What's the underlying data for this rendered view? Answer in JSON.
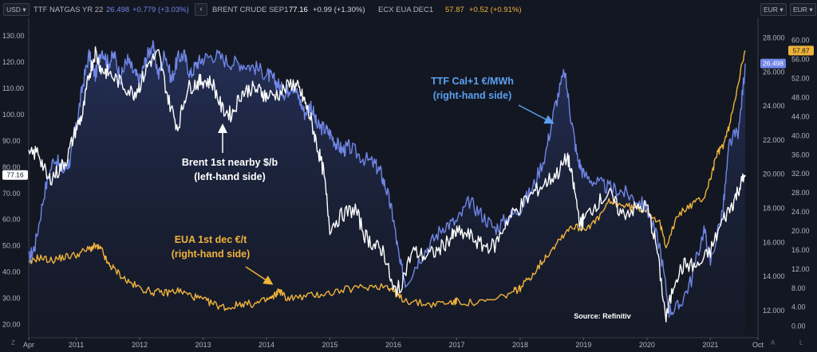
{
  "header": {
    "left_unit": "USD",
    "series": [
      {
        "name": "TTF NATGAS YR 22",
        "value": "26.498",
        "change": "+0.779 (+3.03%)",
        "color": "#6f86e6"
      },
      {
        "name": "BRENT CRUDE SEP1",
        "value": "77.16",
        "change": "+0.99 (+1.30%)",
        "color": "#ffffff"
      },
      {
        "name": "ECX EUA DEC1",
        "value": "57.87",
        "change": "+0.52 (+0.91%)",
        "color": "#f0b33a"
      }
    ],
    "nav_icon": "chevron-left-icon",
    "right_unit_1": "EUR",
    "right_unit_2": "EUR"
  },
  "footer": {
    "left_btn": "Z",
    "right_btn_1": "A",
    "right_btn_2": "L"
  },
  "chart_data": {
    "type": "line",
    "x_ticks": [
      "Apr",
      "2011",
      "2012",
      "2013",
      "2014",
      "2015",
      "2016",
      "2017",
      "2018",
      "2019",
      "2020",
      "2021",
      "Oct"
    ],
    "x_tick_years": [
      2010.25,
      2011,
      2012,
      2013,
      2014,
      2015,
      2016,
      2017,
      2018,
      2019,
      2020,
      2021,
      2021.75
    ],
    "xlim": [
      2010.25,
      2021.75
    ],
    "left_axis": {
      "label": "USD",
      "ylim": [
        15,
        137
      ],
      "ticks": [
        20,
        30,
        40,
        50,
        60,
        70,
        80,
        90,
        100,
        110,
        120,
        130
      ],
      "tick_labels": [
        "20.00",
        "30.00",
        "40.00",
        "50.00",
        "60.00",
        "70.00",
        "80.00",
        "90.00",
        "100.00",
        "110.00",
        "120.00",
        "130.00"
      ]
    },
    "ttf_axis": {
      "label": "EUR",
      "ylim": [
        10.4,
        29.2
      ],
      "ticks": [
        12,
        14,
        16,
        18,
        20,
        22,
        24,
        26,
        28
      ],
      "tick_labels": [
        "12.000",
        "14.000",
        "16.000",
        "18.000",
        "20.000",
        "22.000",
        "24.000",
        "26.000",
        "28.000"
      ]
    },
    "eua_axis": {
      "label": "EUR",
      "ylim": [
        -2.4,
        64.8
      ],
      "ticks": [
        0,
        4,
        8,
        12,
        16,
        20,
        24,
        28,
        32,
        36,
        40,
        44,
        48,
        52,
        56,
        60
      ],
      "tick_labels": [
        "0.00",
        "4.00",
        "8.00",
        "12.00",
        "16.00",
        "20.00",
        "24.00",
        "28.00",
        "32.00",
        "36.00",
        "40.00",
        "44.00",
        "48.00",
        "52.00",
        "56.00",
        "60.00"
      ]
    },
    "series": [
      {
        "name": "TTF Cal+1",
        "unit": "€/MWh",
        "axis": "ttf",
        "color": "#6f86e6",
        "x": [
          2010.25,
          2010.35,
          2010.5,
          2010.65,
          2010.8,
          2010.9,
          2011.0,
          2011.1,
          2011.2,
          2011.3,
          2011.4,
          2011.5,
          2011.6,
          2011.7,
          2011.8,
          2011.9,
          2012.0,
          2012.1,
          2012.2,
          2012.3,
          2012.4,
          2012.5,
          2012.6,
          2012.7,
          2012.8,
          2012.9,
          2013.0,
          2013.2,
          2013.4,
          2013.6,
          2013.8,
          2014.0,
          2014.1,
          2014.2,
          2014.3,
          2014.4,
          2014.5,
          2014.6,
          2014.7,
          2014.8,
          2014.9,
          2015.0,
          2015.1,
          2015.2,
          2015.3,
          2015.5,
          2015.7,
          2015.8,
          2015.9,
          2016.0,
          2016.1,
          2016.2,
          2016.4,
          2016.6,
          2016.8,
          2017.0,
          2017.2,
          2017.4,
          2017.6,
          2017.8,
          2018.0,
          2018.2,
          2018.4,
          2018.55,
          2018.7,
          2018.8,
          2018.9,
          2019.0,
          2019.2,
          2019.4,
          2019.6,
          2019.8,
          2020.0,
          2020.2,
          2020.35,
          2020.5,
          2020.7,
          2020.9,
          2021.0,
          2021.2,
          2021.3,
          2021.45,
          2021.55
        ],
        "y": [
          15.0,
          15.8,
          19.0,
          21.0,
          20.2,
          20.8,
          22.8,
          25.2,
          27.0,
          25.8,
          27.4,
          26.5,
          27.0,
          25.6,
          26.8,
          26.0,
          25.5,
          26.8,
          27.6,
          25.8,
          27.2,
          25.5,
          26.8,
          27.0,
          25.8,
          26.5,
          26.8,
          27.0,
          26.6,
          26.5,
          26.3,
          25.9,
          25.6,
          25.2,
          24.7,
          25.3,
          24.6,
          23.6,
          24.1,
          22.8,
          22.7,
          22.4,
          21.8,
          21.4,
          21.6,
          21.0,
          20.6,
          20.1,
          19.0,
          17.4,
          14.8,
          13.6,
          15.0,
          16.0,
          17.0,
          17.2,
          18.4,
          17.6,
          16.8,
          17.4,
          18.0,
          19.2,
          21.2,
          24.0,
          26.0,
          23.4,
          21.0,
          20.0,
          19.5,
          19.2,
          19.0,
          18.6,
          18.0,
          15.8,
          12.0,
          12.2,
          13.8,
          16.8,
          14.8,
          18.0,
          21.8,
          22.6,
          26.5
        ]
      },
      {
        "name": "Brent 1st nearby",
        "unit": "$/b",
        "axis": "left",
        "color": "#ffffff",
        "x": [
          2010.25,
          2010.4,
          2010.55,
          2010.7,
          2010.85,
          2011.0,
          2011.1,
          2011.2,
          2011.3,
          2011.4,
          2011.5,
          2011.7,
          2011.9,
          2012.0,
          2012.15,
          2012.3,
          2012.45,
          2012.6,
          2012.75,
          2012.9,
          2013.0,
          2013.15,
          2013.3,
          2013.45,
          2013.6,
          2013.75,
          2013.9,
          2014.0,
          2014.2,
          2014.4,
          2014.5,
          2014.6,
          2014.7,
          2014.8,
          2014.9,
          2015.0,
          2015.2,
          2015.4,
          2015.55,
          2015.7,
          2015.85,
          2016.0,
          2016.1,
          2016.3,
          2016.5,
          2016.7,
          2016.9,
          2017.0,
          2017.2,
          2017.4,
          2017.6,
          2017.8,
          2018.0,
          2018.2,
          2018.4,
          2018.6,
          2018.75,
          2018.85,
          2018.95,
          2019.0,
          2019.2,
          2019.4,
          2019.6,
          2019.8,
          2020.0,
          2020.15,
          2020.3,
          2020.45,
          2020.6,
          2020.8,
          2021.0,
          2021.2,
          2021.35,
          2021.45,
          2021.55
        ],
        "y": [
          84,
          86,
          75,
          78,
          83,
          95,
          100,
          115,
          124,
          117,
          116,
          112,
          108,
          111,
          120,
          123,
          106,
          95,
          110,
          112,
          113,
          112,
          102,
          100,
          108,
          110,
          109,
          107,
          108,
          112,
          110,
          105,
          98,
          88,
          78,
          57,
          62,
          64,
          54,
          50,
          48,
          33,
          34,
          48,
          46,
          48,
          53,
          55,
          54,
          50,
          50,
          60,
          65,
          70,
          74,
          78,
          84,
          72,
          58,
          60,
          66,
          70,
          62,
          64,
          65,
          50,
          22,
          38,
          43,
          42,
          48,
          60,
          66,
          72,
          77
        ]
      },
      {
        "name": "EUA 1st dec",
        "unit": "€/t",
        "axis": "eua",
        "color": "#f0b33a",
        "x": [
          2010.25,
          2010.4,
          2010.6,
          2010.8,
          2011.0,
          2011.2,
          2011.3,
          2011.4,
          2011.5,
          2011.6,
          2011.8,
          2012.0,
          2012.2,
          2012.4,
          2012.6,
          2012.8,
          2013.0,
          2013.2,
          2013.4,
          2013.6,
          2013.8,
          2014.0,
          2014.1,
          2014.2,
          2014.3,
          2014.5,
          2014.8,
          2015.0,
          2015.3,
          2015.6,
          2015.9,
          2016.0,
          2016.1,
          2016.3,
          2016.6,
          2016.9,
          2017.0,
          2017.3,
          2017.6,
          2017.9,
          2018.0,
          2018.2,
          2018.4,
          2018.6,
          2018.8,
          2019.0,
          2019.2,
          2019.4,
          2019.6,
          2019.8,
          2020.0,
          2020.2,
          2020.3,
          2020.5,
          2020.7,
          2020.9,
          2021.0,
          2021.1,
          2021.2,
          2021.3,
          2021.45,
          2021.55
        ],
        "y": [
          13.0,
          14.5,
          13.8,
          14.5,
          15.0,
          16.2,
          16.8,
          16.0,
          13.0,
          12.0,
          9.5,
          8.0,
          7.2,
          7.0,
          7.5,
          6.5,
          5.5,
          4.5,
          3.8,
          4.8,
          4.6,
          5.5,
          6.0,
          7.6,
          6.0,
          6.0,
          6.6,
          7.0,
          7.8,
          8.3,
          8.5,
          7.5,
          6.0,
          5.0,
          4.6,
          5.0,
          5.2,
          4.8,
          5.5,
          7.3,
          8.0,
          11.0,
          14.5,
          18.0,
          21.0,
          20.5,
          22.0,
          26.0,
          25.5,
          24.8,
          24.5,
          21.5,
          17.0,
          23.5,
          25.5,
          27.0,
          31.0,
          36.0,
          38.0,
          42.0,
          52.0,
          57.87
        ]
      }
    ],
    "price_tags": [
      {
        "series": "Brent 1st nearby",
        "label": "77.16",
        "side": "left"
      },
      {
        "series": "TTF Cal+1",
        "label": "26.498",
        "side": "right"
      },
      {
        "series": "EUA 1st dec",
        "label": "57.87",
        "side": "right"
      }
    ],
    "annotations": [
      {
        "id": "ttf",
        "lines": [
          "TTF Cal+1 €/MWh",
          "(right-hand side)"
        ],
        "color": "#5aa0f0"
      },
      {
        "id": "brent",
        "lines": [
          "Brent 1st nearby $/b",
          "(left-hand side)"
        ],
        "color": "#ffffff"
      },
      {
        "id": "eua",
        "lines": [
          "EUA 1st dec €/t",
          "(right-hand side)"
        ],
        "color": "#f0b33a"
      }
    ],
    "source": "Source: Refinitiv"
  }
}
